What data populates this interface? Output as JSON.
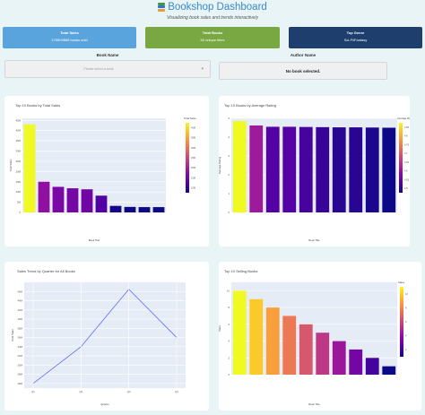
{
  "header": {
    "title": "Bookshop Dashboard",
    "subtitle": "Visualizing book sales and trends interactively"
  },
  "kpis": [
    {
      "label": "Total Sales",
      "value": "170509865 books sold",
      "color": "#5aa4dd"
    },
    {
      "label": "Total Books",
      "value": "50 unique titles",
      "color": "#79a843"
    },
    {
      "label": "Top Genre",
      "value": "Sci-Fi/Fantasy",
      "color": "#1e3e6d"
    }
  ],
  "selectors": {
    "book_label": "Book Name",
    "author_label": "Author Name",
    "book_placeholder": "Please select a book",
    "author_text": "No book selected."
  },
  "colors": {
    "background": "#e8f4f6",
    "plot_bg": "#e5ecf6",
    "line": "#636efa"
  },
  "chart_data": [
    {
      "type": "bar",
      "title": "Top 10 Books by Total Sales",
      "xlabel": "Book Title",
      "ylabel": "Total Sales",
      "colorbar_title": "Total Sales",
      "colorscale": "plasma",
      "ylim": [
        0,
        46000000
      ],
      "yticks": [
        0,
        5000000,
        10000000,
        15000000,
        20000000,
        25000000,
        30000000,
        35000000,
        40000000,
        45000000
      ],
      "ytick_labels": [
        "0",
        "5M",
        "10M",
        "15M",
        "20M",
        "25M",
        "30M",
        "35M",
        "40M",
        "45M"
      ],
      "cbar_ticks": [
        "10M",
        "15M",
        "20M",
        "25M",
        "30M",
        "35M",
        "40M"
      ],
      "categories": [
        "",
        "",
        "",
        "",
        "",
        "",
        "",
        "",
        "",
        ""
      ],
      "values": [
        43000000,
        15000000,
        12500000,
        11800000,
        11300000,
        8200000,
        3200000,
        2700000,
        2600000,
        2600000
      ],
      "grid": true
    },
    {
      "type": "bar",
      "title": "Top 10 Books by Average Rating",
      "xlabel": "Book Title",
      "ylabel": "Average Rating",
      "colorbar_title": "Average Rating",
      "colorscale": "plasma",
      "ylim": [
        0,
        5
      ],
      "yticks": [
        0,
        1,
        2,
        3,
        4,
        5
      ],
      "ytick_labels": [
        "0",
        "1",
        "2",
        "3",
        "4",
        "5"
      ],
      "cbar_ticks": [
        "4.5",
        "4.55",
        "4.6",
        "4.65",
        "4.7",
        "4.75",
        "4.8",
        "4.85"
      ],
      "categories": [
        "",
        "",
        "",
        "",
        "",
        "",
        "",
        "",
        "",
        ""
      ],
      "values": [
        4.85,
        4.62,
        4.55,
        4.55,
        4.54,
        4.53,
        4.52,
        4.52,
        4.51,
        4.5
      ],
      "grid": true
    },
    {
      "type": "line",
      "title": "Sales Trend by Quarter for All Books",
      "xlabel": "Quarter",
      "ylabel": "Total Sales",
      "x": [
        "Q1",
        "Q2",
        "Q3",
        "Q4"
      ],
      "values": [
        26000000,
        34000000,
        46500000,
        36000000
      ],
      "ylim": [
        25000000,
        48000000
      ],
      "yticks": [
        26000000,
        28000000,
        30000000,
        32000000,
        34000000,
        36000000,
        38000000,
        40000000,
        42000000,
        44000000,
        46000000
      ],
      "ytick_labels": [
        "26M",
        "28M",
        "30M",
        "32M",
        "34M",
        "36M",
        "38M",
        "40M",
        "42M",
        "44M",
        "46M"
      ],
      "grid": true
    },
    {
      "type": "bar",
      "title": "Top 10 Selling Books",
      "xlabel": "Book Title",
      "ylabel": "Sales",
      "colorbar_title": "Sales",
      "colorscale": "plasma",
      "ylim": [
        0,
        11
      ],
      "yticks": [
        0,
        2,
        4,
        6,
        8,
        10
      ],
      "ytick_labels": [
        "0",
        "2",
        "4",
        "6",
        "8",
        "10"
      ],
      "cbar_ticks": [
        "2",
        "4",
        "6",
        "8",
        "10"
      ],
      "categories": [
        "",
        "",
        "",
        "",
        "",
        "",
        "",
        "",
        "",
        ""
      ],
      "values": [
        10,
        9,
        8,
        7,
        6,
        5,
        4,
        3,
        2,
        1
      ],
      "grid": true
    }
  ]
}
